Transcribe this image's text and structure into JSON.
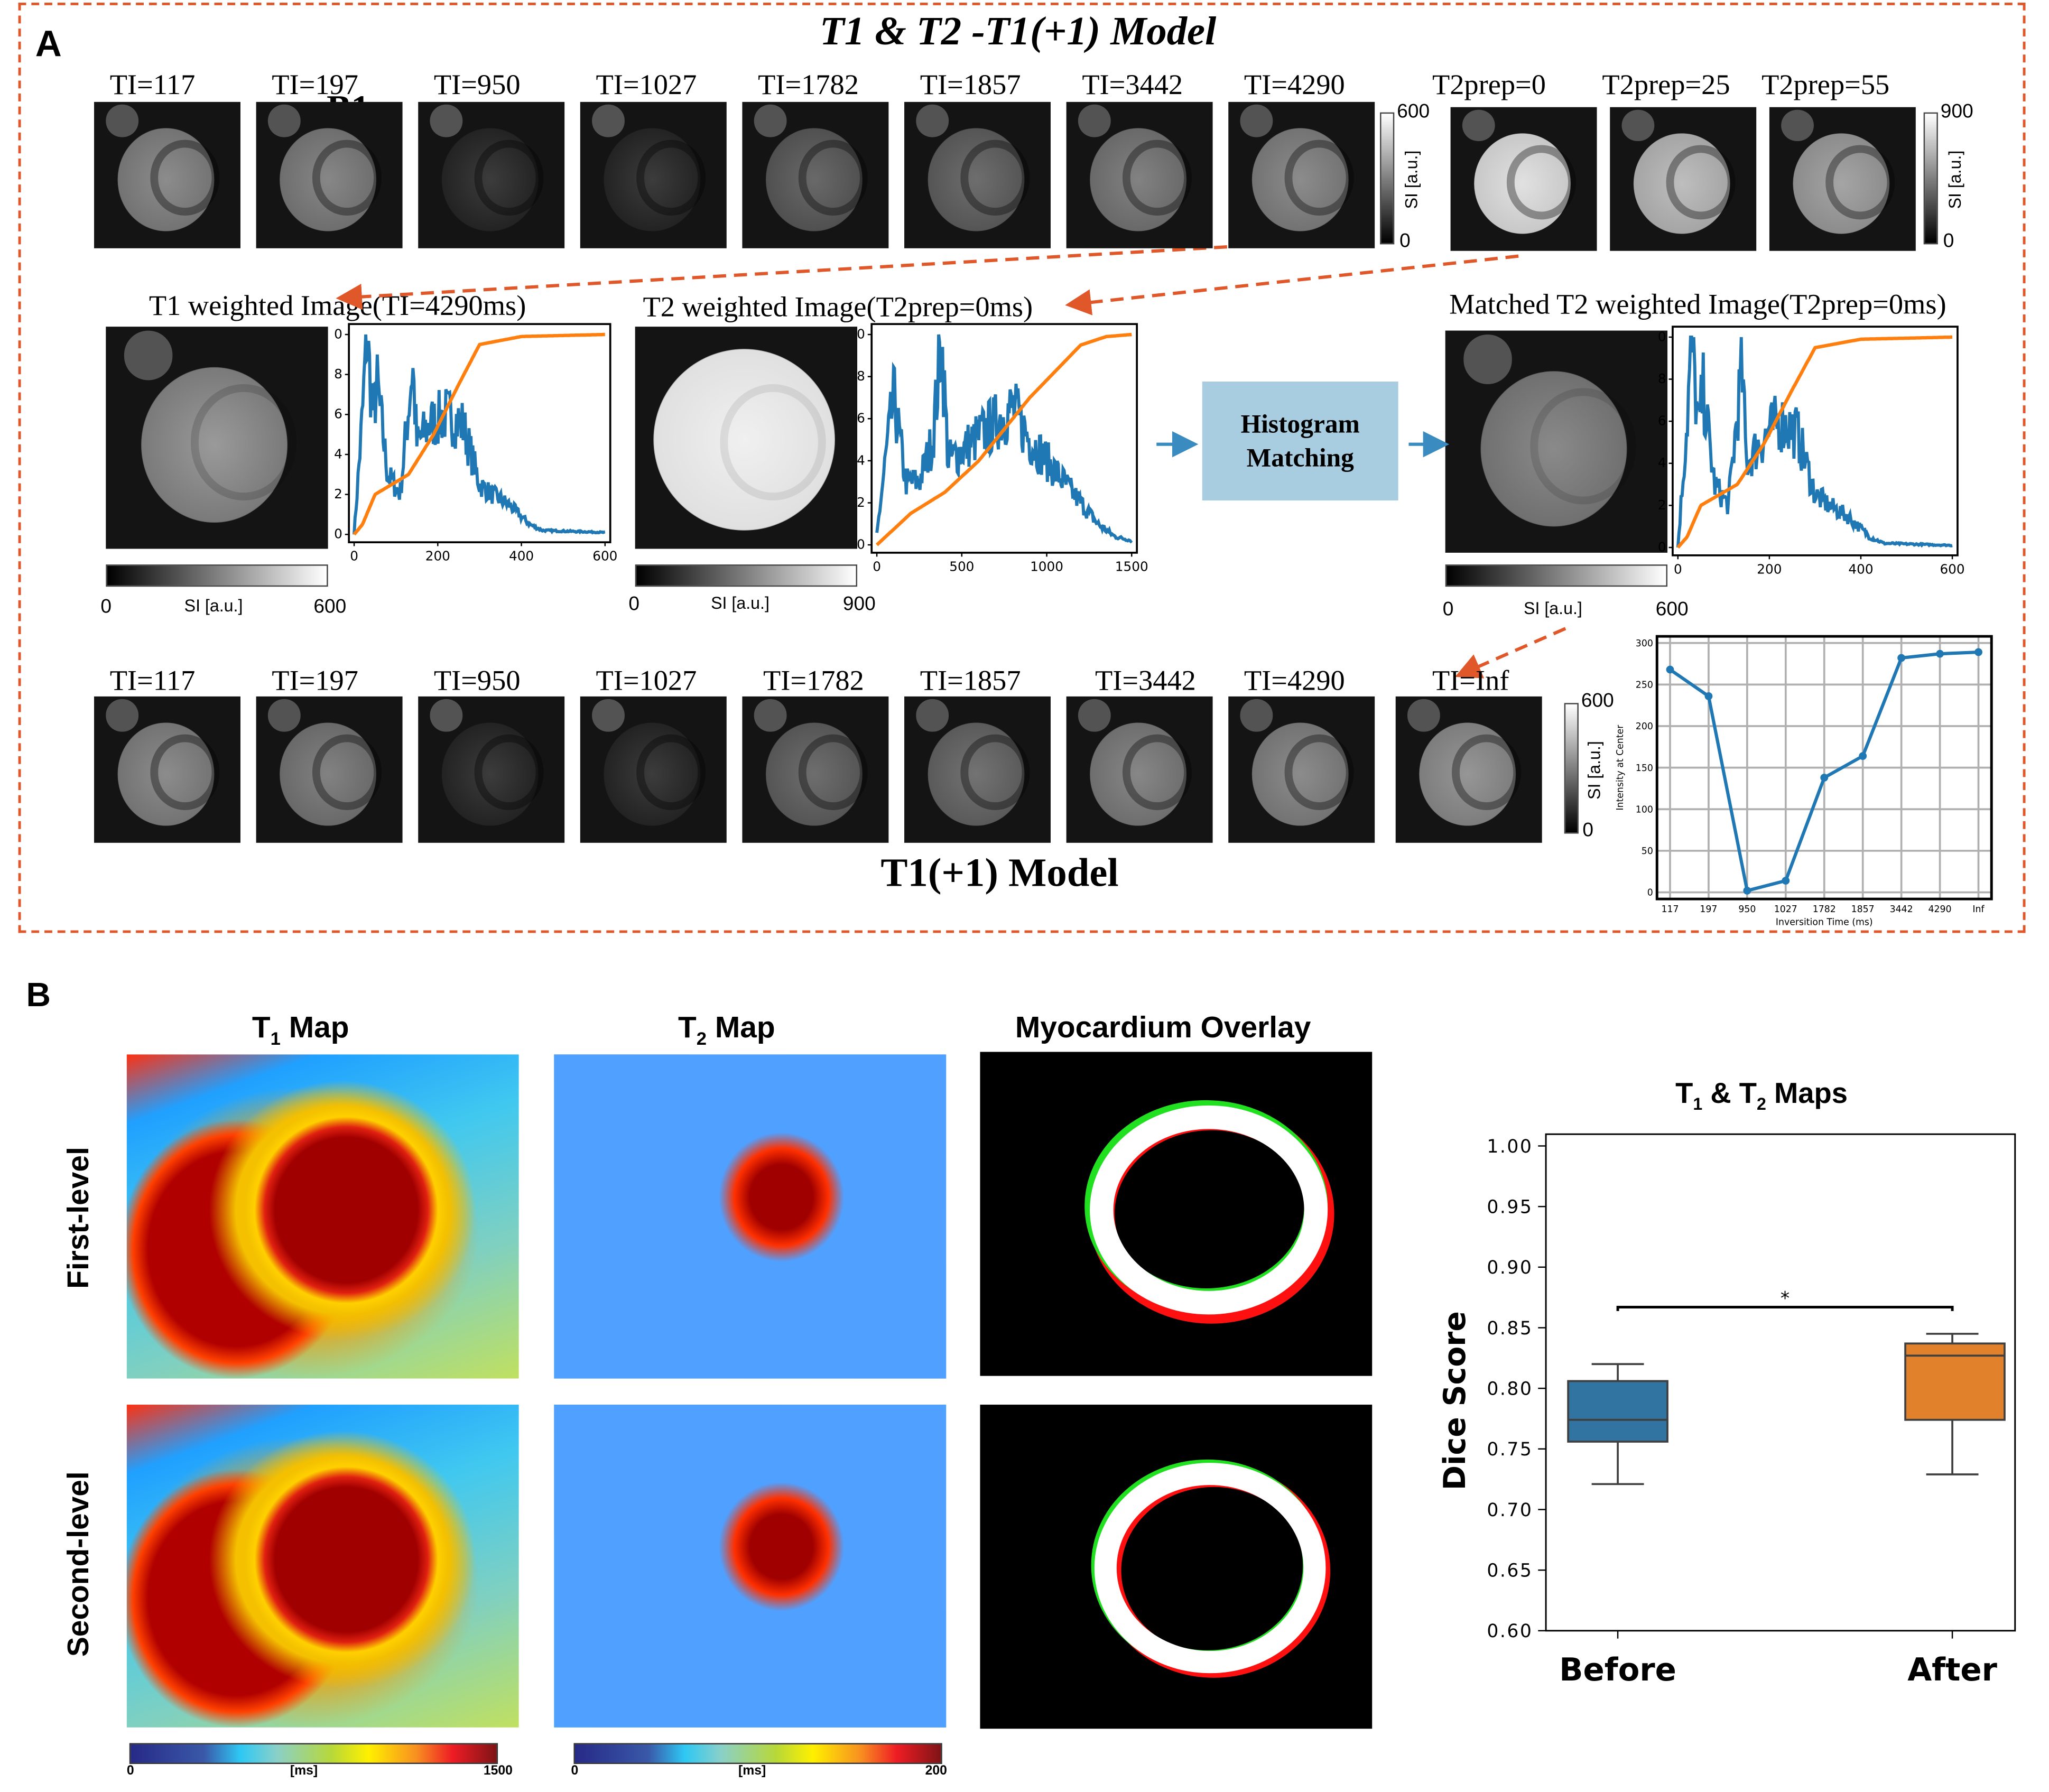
{
  "panel_a": {
    "letter": "A",
    "title": "T1 & T2 -T1(+1) Model",
    "artifact_label": "B1",
    "row1_ti_labels": [
      "TI=117",
      "TI=197",
      "TI=950",
      "TI=1027",
      "TI=1782",
      "TI=1857",
      "TI=3442",
      "TI=4290"
    ],
    "row1_t2prep_labels": [
      "T2prep=0",
      "T2prep=25",
      "T2prep=55"
    ],
    "colorbar_t1": {
      "max": "600",
      "min": "0",
      "label": "SI [a.u.]"
    },
    "colorbar_t2": {
      "max": "900",
      "min": "0",
      "label": "SI [a.u.]"
    },
    "t1_weighted": {
      "title": "T1 weighted Image(TI=4290ms)",
      "cb_min": "0",
      "cb_label": "SI [a.u.]",
      "cb_max": "600"
    },
    "t2_weighted": {
      "title": "T2 weighted Image(T2prep=0ms)",
      "cb_min": "0",
      "cb_label": "SI [a.u.]",
      "cb_max": "900"
    },
    "matched": {
      "title": "Matched T2 weighted Image(T2prep=0ms)",
      "cb_min": "0",
      "cb_label": "SI [a.u.]",
      "cb_max": "600"
    },
    "histogram_box": {
      "line1": "Histogram",
      "line2": "Matching"
    },
    "row3_ti_labels": [
      "TI=117",
      "TI=197",
      "TI=950",
      "TI=1027",
      "TI=1782",
      "TI=1857",
      "TI=3442",
      "TI=4290",
      "TI=Inf"
    ],
    "colorbar_row3": {
      "max": "600",
      "min": "0",
      "label": "SI [a.u.]"
    },
    "bottom_title": "T1(+1) Model",
    "colors": {
      "border": "#e0572a",
      "arrow": "#e0572a",
      "histogram": "#1f77b4",
      "cdf": "#ff7f0e",
      "box": "#a9cde0"
    }
  },
  "panel_b": {
    "letter": "B",
    "col_headers": [
      {
        "main": "T",
        "sub": "1",
        "rest": " Map"
      },
      {
        "main": "T",
        "sub": "2",
        "rest": " Map"
      },
      {
        "main": "Myocardium Overlay",
        "sub": "",
        "rest": ""
      }
    ],
    "row_labels": [
      "First-level",
      "Second-level"
    ],
    "colorbar_t1": {
      "min": "0",
      "unit": "[ms]",
      "max": "1500"
    },
    "colorbar_t2": {
      "min": "0",
      "unit": "[ms]",
      "max": "200"
    }
  },
  "chart_data": [
    {
      "type": "line",
      "name": "t1-weighted-histogram",
      "x_ticks": [
        "0",
        "200",
        "400",
        "600"
      ],
      "xlim": [
        0,
        600
      ],
      "y_ticks": [
        "0.0",
        "0.2",
        "0.4",
        "0.6",
        "0.8",
        "1.0"
      ],
      "ylim": [
        0,
        1
      ],
      "series": [
        {
          "color": "#1f77b4",
          "x": [
            0,
            20,
            30,
            45,
            55,
            80,
            110,
            140,
            150,
            180,
            220,
            260,
            300,
            330,
            370,
            420,
            450,
            600
          ],
          "y": [
            0,
            0.6,
            1.0,
            0.6,
            0.75,
            0.3,
            0.2,
            0.85,
            0.45,
            0.55,
            0.6,
            0.55,
            0.25,
            0.2,
            0.15,
            0.05,
            0.02,
            0.01
          ]
        },
        {
          "color": "#ff7f0e",
          "x": [
            0,
            20,
            50,
            130,
            190,
            250,
            300,
            400,
            600
          ],
          "y": [
            0,
            0.05,
            0.2,
            0.3,
            0.5,
            0.75,
            0.95,
            0.99,
            1.0
          ]
        }
      ]
    },
    {
      "type": "line",
      "name": "t2-weighted-histogram",
      "x_ticks": [
        "0",
        "500",
        "1000",
        "1500"
      ],
      "xlim": [
        0,
        1500
      ],
      "y_ticks": [
        "0.0",
        "0.2",
        "0.4",
        "0.6",
        "0.8",
        "1.0"
      ],
      "ylim": [
        0,
        1
      ],
      "series": [
        {
          "color": "#1f77b4",
          "x": [
            0,
            50,
            100,
            170,
            250,
            330,
            380,
            420,
            500,
            650,
            800,
            900,
            1050,
            1200,
            1300,
            1400,
            1500
          ],
          "y": [
            0.05,
            0.4,
            0.7,
            0.3,
            0.3,
            0.5,
            0.98,
            0.4,
            0.45,
            0.55,
            0.65,
            0.5,
            0.35,
            0.2,
            0.1,
            0.04,
            0.02
          ]
        },
        {
          "color": "#ff7f0e",
          "x": [
            0,
            200,
            400,
            600,
            900,
            1200,
            1350,
            1500
          ],
          "y": [
            0,
            0.15,
            0.25,
            0.4,
            0.7,
            0.95,
            0.99,
            1.0
          ]
        }
      ]
    },
    {
      "type": "line",
      "name": "matched-histogram",
      "x_ticks": [
        "0",
        "200",
        "400",
        "600"
      ],
      "xlim": [
        0,
        600
      ],
      "y_ticks": [
        "0.0",
        "0.2",
        "0.4",
        "0.6",
        "0.8",
        "1.0"
      ],
      "ylim": [
        0,
        1
      ],
      "series": [
        {
          "color": "#1f77b4",
          "x": [
            0,
            20,
            30,
            45,
            55,
            80,
            110,
            140,
            150,
            180,
            220,
            260,
            300,
            330,
            370,
            420,
            450,
            600
          ],
          "y": [
            0,
            0.6,
            1.0,
            0.55,
            0.75,
            0.3,
            0.2,
            0.85,
            0.4,
            0.5,
            0.6,
            0.55,
            0.25,
            0.2,
            0.15,
            0.05,
            0.02,
            0.01
          ]
        },
        {
          "color": "#ff7f0e",
          "x": [
            0,
            20,
            50,
            130,
            190,
            250,
            300,
            400,
            600
          ],
          "y": [
            0,
            0.05,
            0.2,
            0.3,
            0.5,
            0.75,
            0.95,
            0.99,
            1.0
          ]
        }
      ]
    },
    {
      "type": "line",
      "name": "intensity-vs-inversion-time",
      "xlabel": "Inversition Time (ms)",
      "ylabel": "Intensity at Center",
      "categories": [
        "117",
        "197",
        "950",
        "1027",
        "1782",
        "1857",
        "3442",
        "4290",
        "Inf"
      ],
      "values": [
        268,
        236,
        2,
        14,
        138,
        164,
        282,
        287,
        289
      ],
      "y_ticks": [
        "0",
        "50",
        "100",
        "150",
        "200",
        "250",
        "300"
      ],
      "ylim": [
        -8,
        308
      ],
      "grid": true,
      "color": "#1f77b4"
    },
    {
      "type": "box",
      "name": "dice-score-boxplot",
      "title": {
        "main": "T",
        "sub1": "1",
        "mid": " & T",
        "sub2": "2",
        "rest": " Maps"
      },
      "ylabel": "Dice Score",
      "categories": [
        "Before",
        "After"
      ],
      "y_ticks": [
        "0.60",
        "0.65",
        "0.70",
        "0.75",
        "0.80",
        "0.85",
        "0.90",
        "0.95",
        "1.00"
      ],
      "ylim": [
        0.6,
        1.0
      ],
      "boxes": [
        {
          "label": "Before",
          "whisker_low": 0.721,
          "q1": 0.756,
          "median": 0.774,
          "q3": 0.806,
          "whisker_high": 0.82,
          "color": "#3274a1"
        },
        {
          "label": "After",
          "whisker_low": 0.729,
          "q1": 0.774,
          "median": 0.827,
          "q3": 0.837,
          "whisker_high": 0.845,
          "color": "#e1812c"
        }
      ],
      "significance": {
        "label": "*",
        "y": 0.867
      }
    }
  ]
}
